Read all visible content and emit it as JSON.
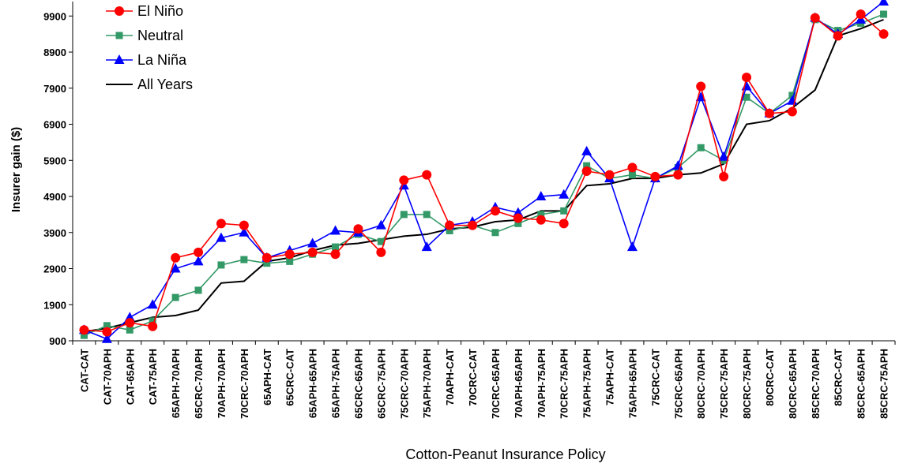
{
  "chart_data": {
    "type": "line",
    "xlabel": "Cotton-Peanut Insurance Policy",
    "ylabel": "Insurer gain ($)",
    "ylim": [
      900,
      10300
    ],
    "yticks": [
      900,
      1900,
      2900,
      3900,
      4900,
      5900,
      6900,
      7900,
      8900,
      9900
    ],
    "grid": false,
    "legend_position": "top-left",
    "categories": [
      "CAT-CAT",
      "CAT-70APH",
      "CAT-65APH",
      "CAT-75APH",
      "65APH-70APH",
      "65CRC-70APH",
      "70APH-70APH",
      "70CRC-70APH",
      "65APH-CAT",
      "65CRC-CAT",
      "65APH-65APH",
      "65APH-75APH",
      "65CRC-65APH",
      "65CRC-75APH",
      "75CRC-70APH",
      "75APH-70APH",
      "70APH-CAT",
      "70CRC-CAT",
      "70CRC-65APH",
      "70APH-65APH",
      "70APH-75APH",
      "70CRC-75APH",
      "75APH-75APH",
      "75APH-CAT",
      "75APH-65APH",
      "75CRC-CAT",
      "75CRC-65APH",
      "80CRC-70APH",
      "75CRC-75APH",
      "80CRC-75APH",
      "80CRC-CAT",
      "80CRC-65APH",
      "85CRC-70APH",
      "85CRC-CAT",
      "85CRC-65APH",
      "85CRC-75APH"
    ],
    "series": [
      {
        "name": "El Niño",
        "color": "#ff0000",
        "line_color": "#ff0000",
        "marker": "circle",
        "values": [
          1200,
          1150,
          1400,
          1300,
          3200,
          3350,
          4150,
          4100,
          3200,
          3300,
          3350,
          3300,
          4000,
          3350,
          5350,
          5500,
          4100,
          4100,
          4500,
          4300,
          4250,
          4150,
          5600,
          5500,
          5700,
          5450,
          5500,
          7950,
          5450,
          8200,
          7200,
          7250,
          9850,
          9350,
          9950,
          9400
        ]
      },
      {
        "name": "Neutral",
        "color": "#339966",
        "line_color": "#339966",
        "marker": "square",
        "values": [
          1050,
          1320,
          1200,
          1450,
          2100,
          2300,
          3000,
          3150,
          3050,
          3100,
          3300,
          3500,
          3850,
          3650,
          4400,
          4400,
          3950,
          4100,
          3900,
          4150,
          4400,
          4500,
          5750,
          5400,
          5500,
          5400,
          5700,
          6250,
          5900,
          7650,
          7200,
          7700,
          9800,
          9500,
          9700,
          9950
        ]
      },
      {
        "name": "La Niña",
        "color": "#0000ff",
        "line_color": "#0000ff",
        "marker": "triangle",
        "values": [
          1200,
          950,
          1550,
          1900,
          2900,
          3100,
          3750,
          3900,
          3200,
          3400,
          3600,
          3950,
          3900,
          4100,
          5200,
          3500,
          4100,
          4200,
          4600,
          4450,
          4900,
          4950,
          6150,
          5400,
          3500,
          5400,
          5750,
          7650,
          6000,
          7950,
          7200,
          7550,
          9850,
          9400,
          9800,
          10300
        ]
      },
      {
        "name": "All Years",
        "color": "#000000",
        "line_color": "#000000",
        "marker": "none",
        "values": [
          1150,
          1250,
          1400,
          1550,
          1600,
          1750,
          2500,
          2550,
          3100,
          3200,
          3400,
          3550,
          3600,
          3700,
          3800,
          3850,
          4000,
          4050,
          4200,
          4250,
          4500,
          4500,
          5200,
          5250,
          5400,
          5400,
          5500,
          5550,
          5800,
          6900,
          7000,
          7350,
          7850,
          9350,
          9550,
          9800
        ]
      }
    ]
  }
}
